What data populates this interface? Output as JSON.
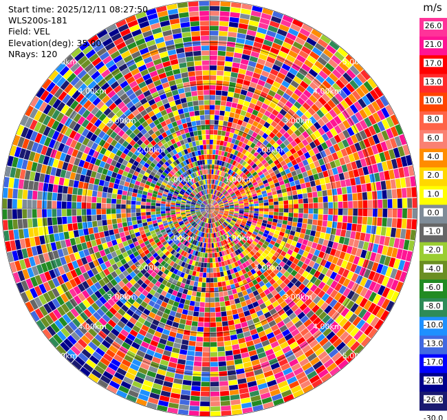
{
  "info": {
    "start_time": "Start time: 2025/12/11 08:27:50",
    "station": "WLS200s-181",
    "field": "Field: VEL",
    "elevation": "Elevation(deg): 35.00",
    "nrays": "NRays: 120"
  },
  "chart_data": {
    "type": "heatmap",
    "projection": "polar-ppi",
    "nrays": 120,
    "range_rings": [
      "1.00km",
      "2.00km",
      "3.00km",
      "4.00km",
      "5.00km"
    ],
    "range_max": 5.0,
    "colorbar": {
      "unit": "m/s",
      "tick_labels": [
        "26.0",
        "21.0",
        "17.0",
        "13.0",
        "10.0",
        "8.0",
        "6.0",
        "4.0",
        "2.0",
        "1.0",
        "0.0",
        "-1.0",
        "-2.0",
        "-4.0",
        "-6.0",
        "-8.0",
        "-10.0",
        "-13.0",
        "-17.0",
        "-21.0",
        "-26.0",
        "-30.0"
      ],
      "colors": [
        "#ff3399",
        "#ff1493",
        "#ff0000",
        "#ff2a2a",
        "#ff4500",
        "#ff6347",
        "#fa8072",
        "#ff8c00",
        "#ffd700",
        "#ffff00",
        "#7f8c98",
        "#666666",
        "#9acd32",
        "#6b8e23",
        "#228b22",
        "#2e8b57",
        "#1e90ff",
        "#4169e1",
        "#0000ff",
        "#00008b",
        "#191970"
      ]
    }
  }
}
